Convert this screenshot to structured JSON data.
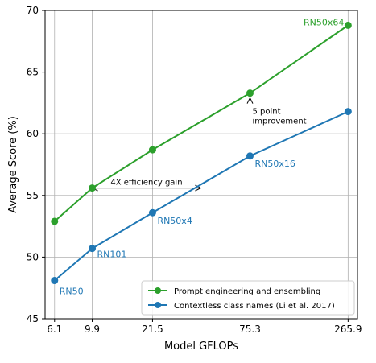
{
  "chart_data": {
    "type": "line",
    "xlabel": "Model GFLOPs",
    "ylabel": "Average Score (%)",
    "x_ticks": [
      "6.1",
      "9.9",
      "21.5",
      "75.3",
      "265.9"
    ],
    "y_ticks": [
      45,
      50,
      55,
      60,
      65,
      70
    ],
    "ylim": [
      45,
      70
    ],
    "x_scale": "log",
    "grid": true,
    "legend_position": "lower-right",
    "series": [
      {
        "name": "Prompt engineering and ensembling",
        "color": "#2ca02c",
        "x": [
          6.1,
          9.9,
          21.5,
          75.3,
          265.9
        ],
        "y": [
          52.9,
          55.6,
          58.7,
          63.3,
          68.8
        ]
      },
      {
        "name": "Contextless class names (Li et al. 2017)",
        "color": "#1f77b4",
        "x": [
          6.1,
          9.9,
          21.5,
          75.3,
          265.9
        ],
        "y": [
          48.1,
          50.7,
          53.6,
          58.2,
          61.8
        ]
      }
    ],
    "point_labels": [
      {
        "text": "RN50",
        "x": 6.1,
        "y": 48.1,
        "color": "#1f77b4"
      },
      {
        "text": "RN101",
        "x": 9.9,
        "y": 50.7,
        "color": "#1f77b4"
      },
      {
        "text": "RN50x4",
        "x": 21.5,
        "y": 53.6,
        "color": "#1f77b4"
      },
      {
        "text": "RN50x16",
        "x": 75.3,
        "y": 58.2,
        "color": "#1f77b4"
      },
      {
        "text": "RN50x64",
        "x": 265.9,
        "y": 68.8,
        "color": "#2ca02c"
      }
    ],
    "annotations": {
      "efficiency": {
        "text": "4X efficiency gain",
        "x_from": 9.9,
        "x_to": 40.0,
        "y": 55.6
      },
      "improvement": {
        "line1": "5 point",
        "line2": "improvement",
        "x": 75.3,
        "y_from": 58.2,
        "y_to": 63.3
      }
    }
  }
}
